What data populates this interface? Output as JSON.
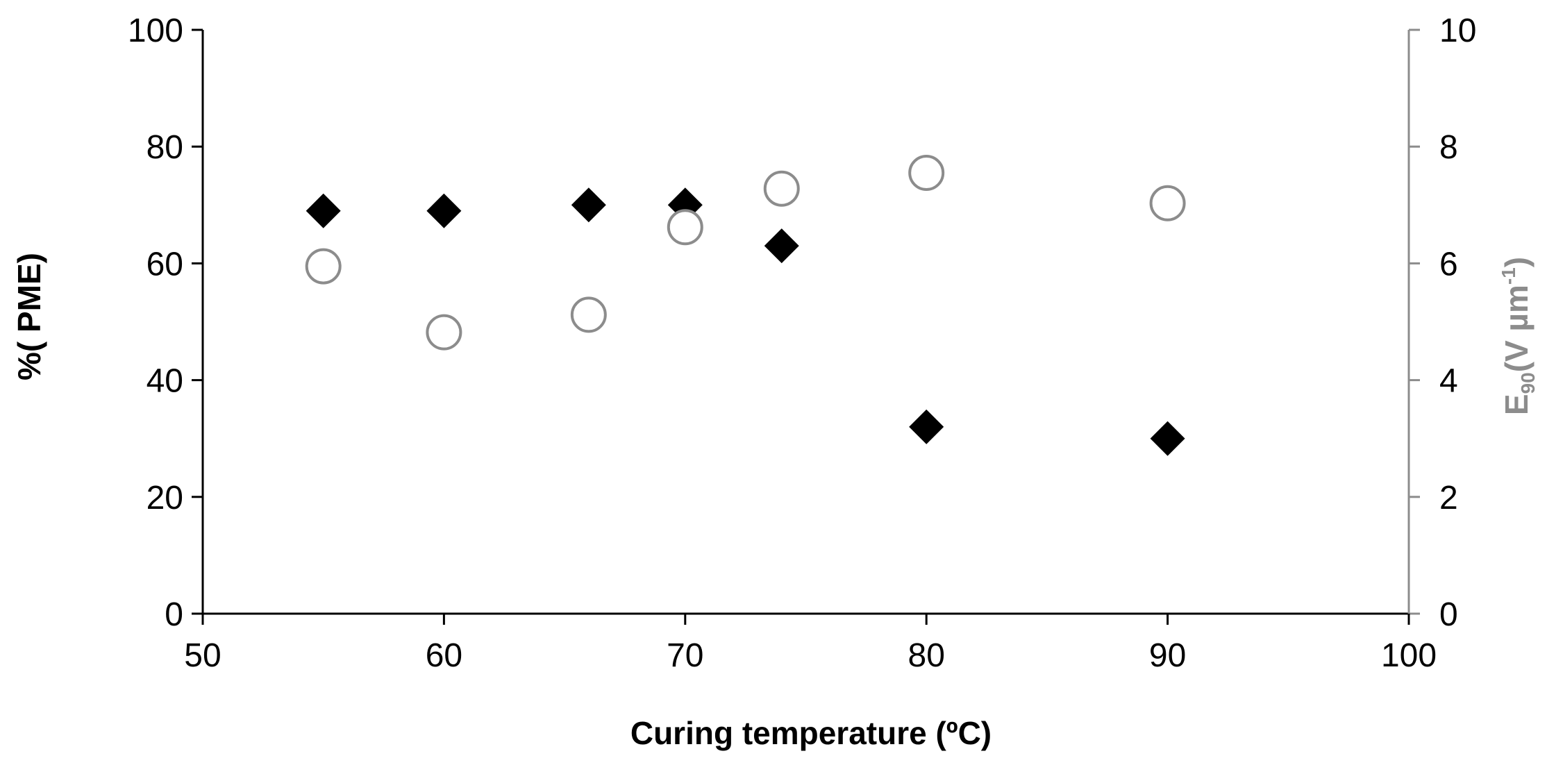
{
  "chart_data": {
    "type": "scatter",
    "title": "",
    "xlabel": "Curing temperature  (ºC)",
    "ylabel_left": "%( PME)",
    "ylabel_right": {
      "main": "E",
      "sub": "90",
      "rest": "(V µm",
      "sup": "-1",
      "close": ")"
    },
    "xlim": [
      50,
      100
    ],
    "ylim_left": [
      0,
      100
    ],
    "ylim_right": [
      0,
      10
    ],
    "x_ticks": [
      "50",
      "60",
      "70",
      "80",
      "90",
      "100"
    ],
    "y_left_ticks": [
      "0",
      "20",
      "40",
      "60",
      "80",
      "100"
    ],
    "y_right_ticks": [
      "0",
      "2",
      "4",
      "6",
      "8",
      "10"
    ],
    "grid": false,
    "series": [
      {
        "name": "%( PME)",
        "axis": "left",
        "marker": "diamond",
        "color": "#000000",
        "points": [
          [
            55,
            69
          ],
          [
            60,
            69
          ],
          [
            66,
            70
          ],
          [
            70,
            70
          ],
          [
            74,
            63
          ],
          [
            80,
            32
          ],
          [
            90,
            30
          ]
        ]
      },
      {
        "name": "E90",
        "axis": "right",
        "marker": "open-circle",
        "color": "#8c8c8c",
        "points": [
          [
            55,
            5.95
          ],
          [
            60,
            4.82
          ],
          [
            66,
            5.12
          ],
          [
            70,
            6.62
          ],
          [
            74,
            7.28
          ],
          [
            80,
            7.55
          ],
          [
            90,
            7.03
          ]
        ]
      }
    ],
    "colors": {
      "left_axis": "#000000",
      "right_axis": "#8c8c8c"
    }
  }
}
